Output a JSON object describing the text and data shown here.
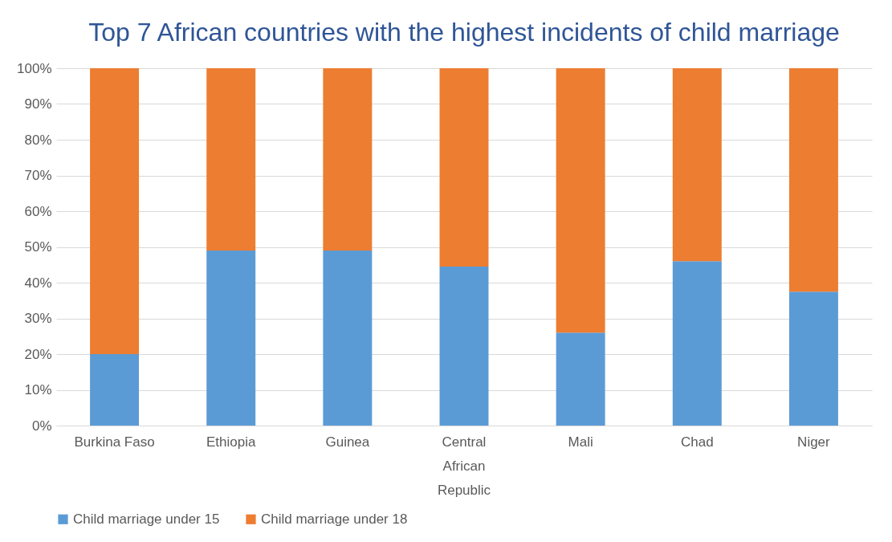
{
  "chart_data": {
    "type": "bar",
    "title": "Top 7 African countries with the highest incidents of child marriage",
    "categories": [
      "Burkina Faso",
      "Ethiopia",
      "Guinea",
      "Central African Republic",
      "Mali",
      "Chad",
      "Niger"
    ],
    "series": [
      {
        "name": "Child marriage under 15",
        "color": "#5b9bd5",
        "values": [
          20,
          49,
          49,
          44.5,
          26,
          46,
          37.5
        ]
      },
      {
        "name": "Child marriage under 18",
        "color": "#ed7d31",
        "values": [
          80,
          51,
          51,
          55.5,
          74,
          54,
          62.5
        ]
      }
    ],
    "stacked": true,
    "ylim": [
      0,
      100
    ],
    "yticks": [
      {
        "value": 0,
        "label": "0%"
      },
      {
        "value": 10,
        "label": "10%"
      },
      {
        "value": 20,
        "label": "20%"
      },
      {
        "value": 30,
        "label": "30%"
      },
      {
        "value": 40,
        "label": "40%"
      },
      {
        "value": 50,
        "label": "50%"
      },
      {
        "value": 60,
        "label": "60%"
      },
      {
        "value": 70,
        "label": "70%"
      },
      {
        "value": 80,
        "label": "80%"
      },
      {
        "value": 90,
        "label": "90%"
      },
      {
        "value": 100,
        "label": "100%"
      }
    ],
    "grid": "y",
    "legend": "bottom"
  }
}
